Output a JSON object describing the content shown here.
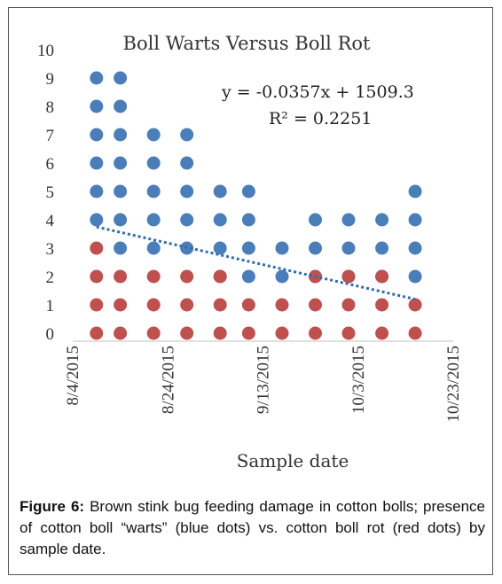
{
  "chart_data": {
    "type": "scatter",
    "title": "Boll Warts Versus Boll Rot",
    "xlabel": "Sample date",
    "ylabel": "",
    "ylim": [
      0,
      10
    ],
    "y_ticks": [
      "0",
      "1",
      "2",
      "3",
      "4",
      "5",
      "6",
      "7",
      "8",
      "9",
      "10"
    ],
    "x_ticks": [
      "8/4/2015",
      "8/24/2015",
      "9/13/2015",
      "10/3/2015",
      "10/23/2015"
    ],
    "xlim": [
      "2015-08-04",
      "2015-10-23"
    ],
    "grid": false,
    "colors": {
      "warts": "#4a7ebb",
      "rot": "#c0504d",
      "trend": "#2e6db0"
    },
    "series": [
      {
        "color": "warts",
        "points": [
          {
            "x": "2015-08-09",
            "y": 4
          },
          {
            "x": "2015-08-09",
            "y": 5
          },
          {
            "x": "2015-08-09",
            "y": 6
          },
          {
            "x": "2015-08-09",
            "y": 7
          },
          {
            "x": "2015-08-09",
            "y": 8
          },
          {
            "x": "2015-08-09",
            "y": 9
          },
          {
            "x": "2015-08-14",
            "y": 3
          },
          {
            "x": "2015-08-14",
            "y": 4
          },
          {
            "x": "2015-08-14",
            "y": 5
          },
          {
            "x": "2015-08-14",
            "y": 6
          },
          {
            "x": "2015-08-14",
            "y": 7
          },
          {
            "x": "2015-08-14",
            "y": 8
          },
          {
            "x": "2015-08-14",
            "y": 9
          },
          {
            "x": "2015-08-21",
            "y": 3
          },
          {
            "x": "2015-08-21",
            "y": 4
          },
          {
            "x": "2015-08-21",
            "y": 5
          },
          {
            "x": "2015-08-21",
            "y": 6
          },
          {
            "x": "2015-08-21",
            "y": 7
          },
          {
            "x": "2015-08-28",
            "y": 3
          },
          {
            "x": "2015-08-28",
            "y": 4
          },
          {
            "x": "2015-08-28",
            "y": 5
          },
          {
            "x": "2015-08-28",
            "y": 6
          },
          {
            "x": "2015-08-28",
            "y": 7
          },
          {
            "x": "2015-09-04",
            "y": 2
          },
          {
            "x": "2015-09-04",
            "y": 3
          },
          {
            "x": "2015-09-04",
            "y": 4
          },
          {
            "x": "2015-09-04",
            "y": 5
          },
          {
            "x": "2015-09-10",
            "y": 2
          },
          {
            "x": "2015-09-10",
            "y": 3
          },
          {
            "x": "2015-09-10",
            "y": 4
          },
          {
            "x": "2015-09-10",
            "y": 5
          },
          {
            "x": "2015-09-17",
            "y": 2
          },
          {
            "x": "2015-09-17",
            "y": 3
          },
          {
            "x": "2015-09-24",
            "y": 2
          },
          {
            "x": "2015-09-24",
            "y": 3
          },
          {
            "x": "2015-09-24",
            "y": 4
          },
          {
            "x": "2015-10-01",
            "y": 2
          },
          {
            "x": "2015-10-01",
            "y": 3
          },
          {
            "x": "2015-10-01",
            "y": 4
          },
          {
            "x": "2015-10-08",
            "y": 2
          },
          {
            "x": "2015-10-08",
            "y": 3
          },
          {
            "x": "2015-10-08",
            "y": 4
          },
          {
            "x": "2015-10-15",
            "y": 2
          },
          {
            "x": "2015-10-15",
            "y": 3
          },
          {
            "x": "2015-10-15",
            "y": 4
          },
          {
            "x": "2015-10-15",
            "y": 5
          }
        ]
      },
      {
        "color": "rot",
        "points": [
          {
            "x": "2015-08-09",
            "y": 0
          },
          {
            "x": "2015-08-09",
            "y": 1
          },
          {
            "x": "2015-08-09",
            "y": 2
          },
          {
            "x": "2015-08-09",
            "y": 3
          },
          {
            "x": "2015-08-14",
            "y": 0
          },
          {
            "x": "2015-08-14",
            "y": 1
          },
          {
            "x": "2015-08-14",
            "y": 2
          },
          {
            "x": "2015-08-21",
            "y": 0
          },
          {
            "x": "2015-08-21",
            "y": 1
          },
          {
            "x": "2015-08-21",
            "y": 2
          },
          {
            "x": "2015-08-28",
            "y": 0
          },
          {
            "x": "2015-08-28",
            "y": 1
          },
          {
            "x": "2015-08-28",
            "y": 2
          },
          {
            "x": "2015-09-04",
            "y": 0
          },
          {
            "x": "2015-09-04",
            "y": 1
          },
          {
            "x": "2015-09-04",
            "y": 2
          },
          {
            "x": "2015-09-10",
            "y": 0
          },
          {
            "x": "2015-09-10",
            "y": 1
          },
          {
            "x": "2015-09-17",
            "y": 0
          },
          {
            "x": "2015-09-17",
            "y": 1
          },
          {
            "x": "2015-09-24",
            "y": 0
          },
          {
            "x": "2015-09-24",
            "y": 1
          },
          {
            "x": "2015-09-24",
            "y": 2
          },
          {
            "x": "2015-10-01",
            "y": 0
          },
          {
            "x": "2015-10-01",
            "y": 1
          },
          {
            "x": "2015-10-01",
            "y": 2
          },
          {
            "x": "2015-10-08",
            "y": 0
          },
          {
            "x": "2015-10-08",
            "y": 1
          },
          {
            "x": "2015-10-08",
            "y": 2
          },
          {
            "x": "2015-10-15",
            "y": 0
          },
          {
            "x": "2015-10-15",
            "y": 1
          }
        ]
      }
    ],
    "trendline": {
      "equation": "y = -0.0357x + 1509.3",
      "r2": "R² = 0.2251",
      "from": {
        "x": "2015-08-09",
        "y": 3.75
      },
      "to": {
        "x": "2015-10-15",
        "y": 1.2
      }
    }
  },
  "caption": {
    "label": "Figure 6:",
    "text": "Brown stink bug feeding damage in cotton bolls; presence of cotton boll “warts” (blue dots) vs. cotton boll rot (red dots) by sample date."
  }
}
